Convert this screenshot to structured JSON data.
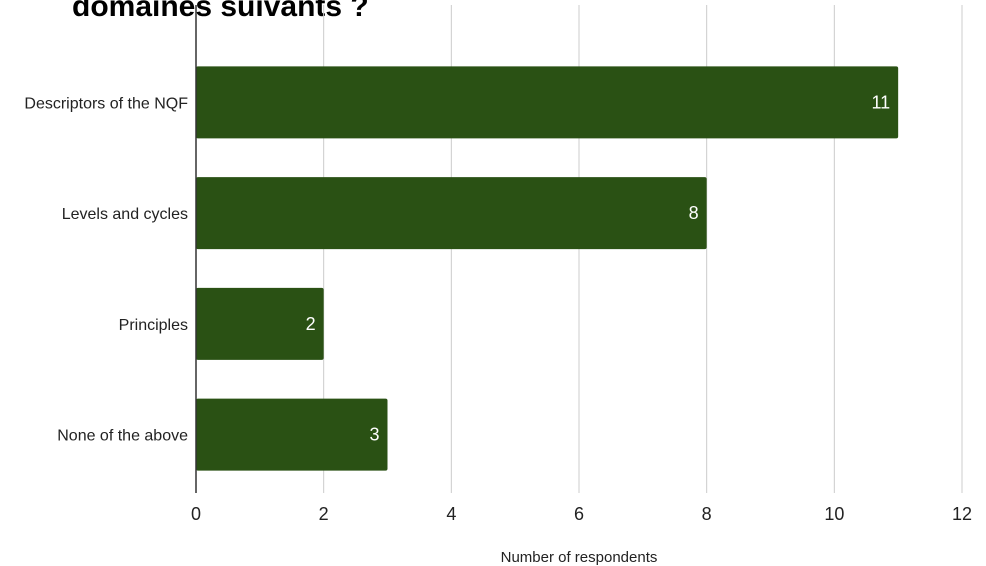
{
  "chart_data": {
    "type": "bar",
    "orientation": "horizontal",
    "title": "domaines suivants ?",
    "categories": [
      "Descriptors of the NQF",
      "Levels and cycles",
      "Principles",
      "None of the above"
    ],
    "values": [
      11,
      8,
      2,
      3
    ],
    "xlabel": "Number of respondents",
    "ylabel": "",
    "xlim": [
      0,
      12
    ],
    "xticks": [
      "0",
      "2",
      "4",
      "6",
      "8",
      "10",
      "12"
    ],
    "data_labels": [
      "11",
      "8",
      "2",
      "3"
    ],
    "grid": "vertical",
    "legend": "none",
    "bar_color": "#2a5114",
    "label_color": "#ffffff"
  }
}
